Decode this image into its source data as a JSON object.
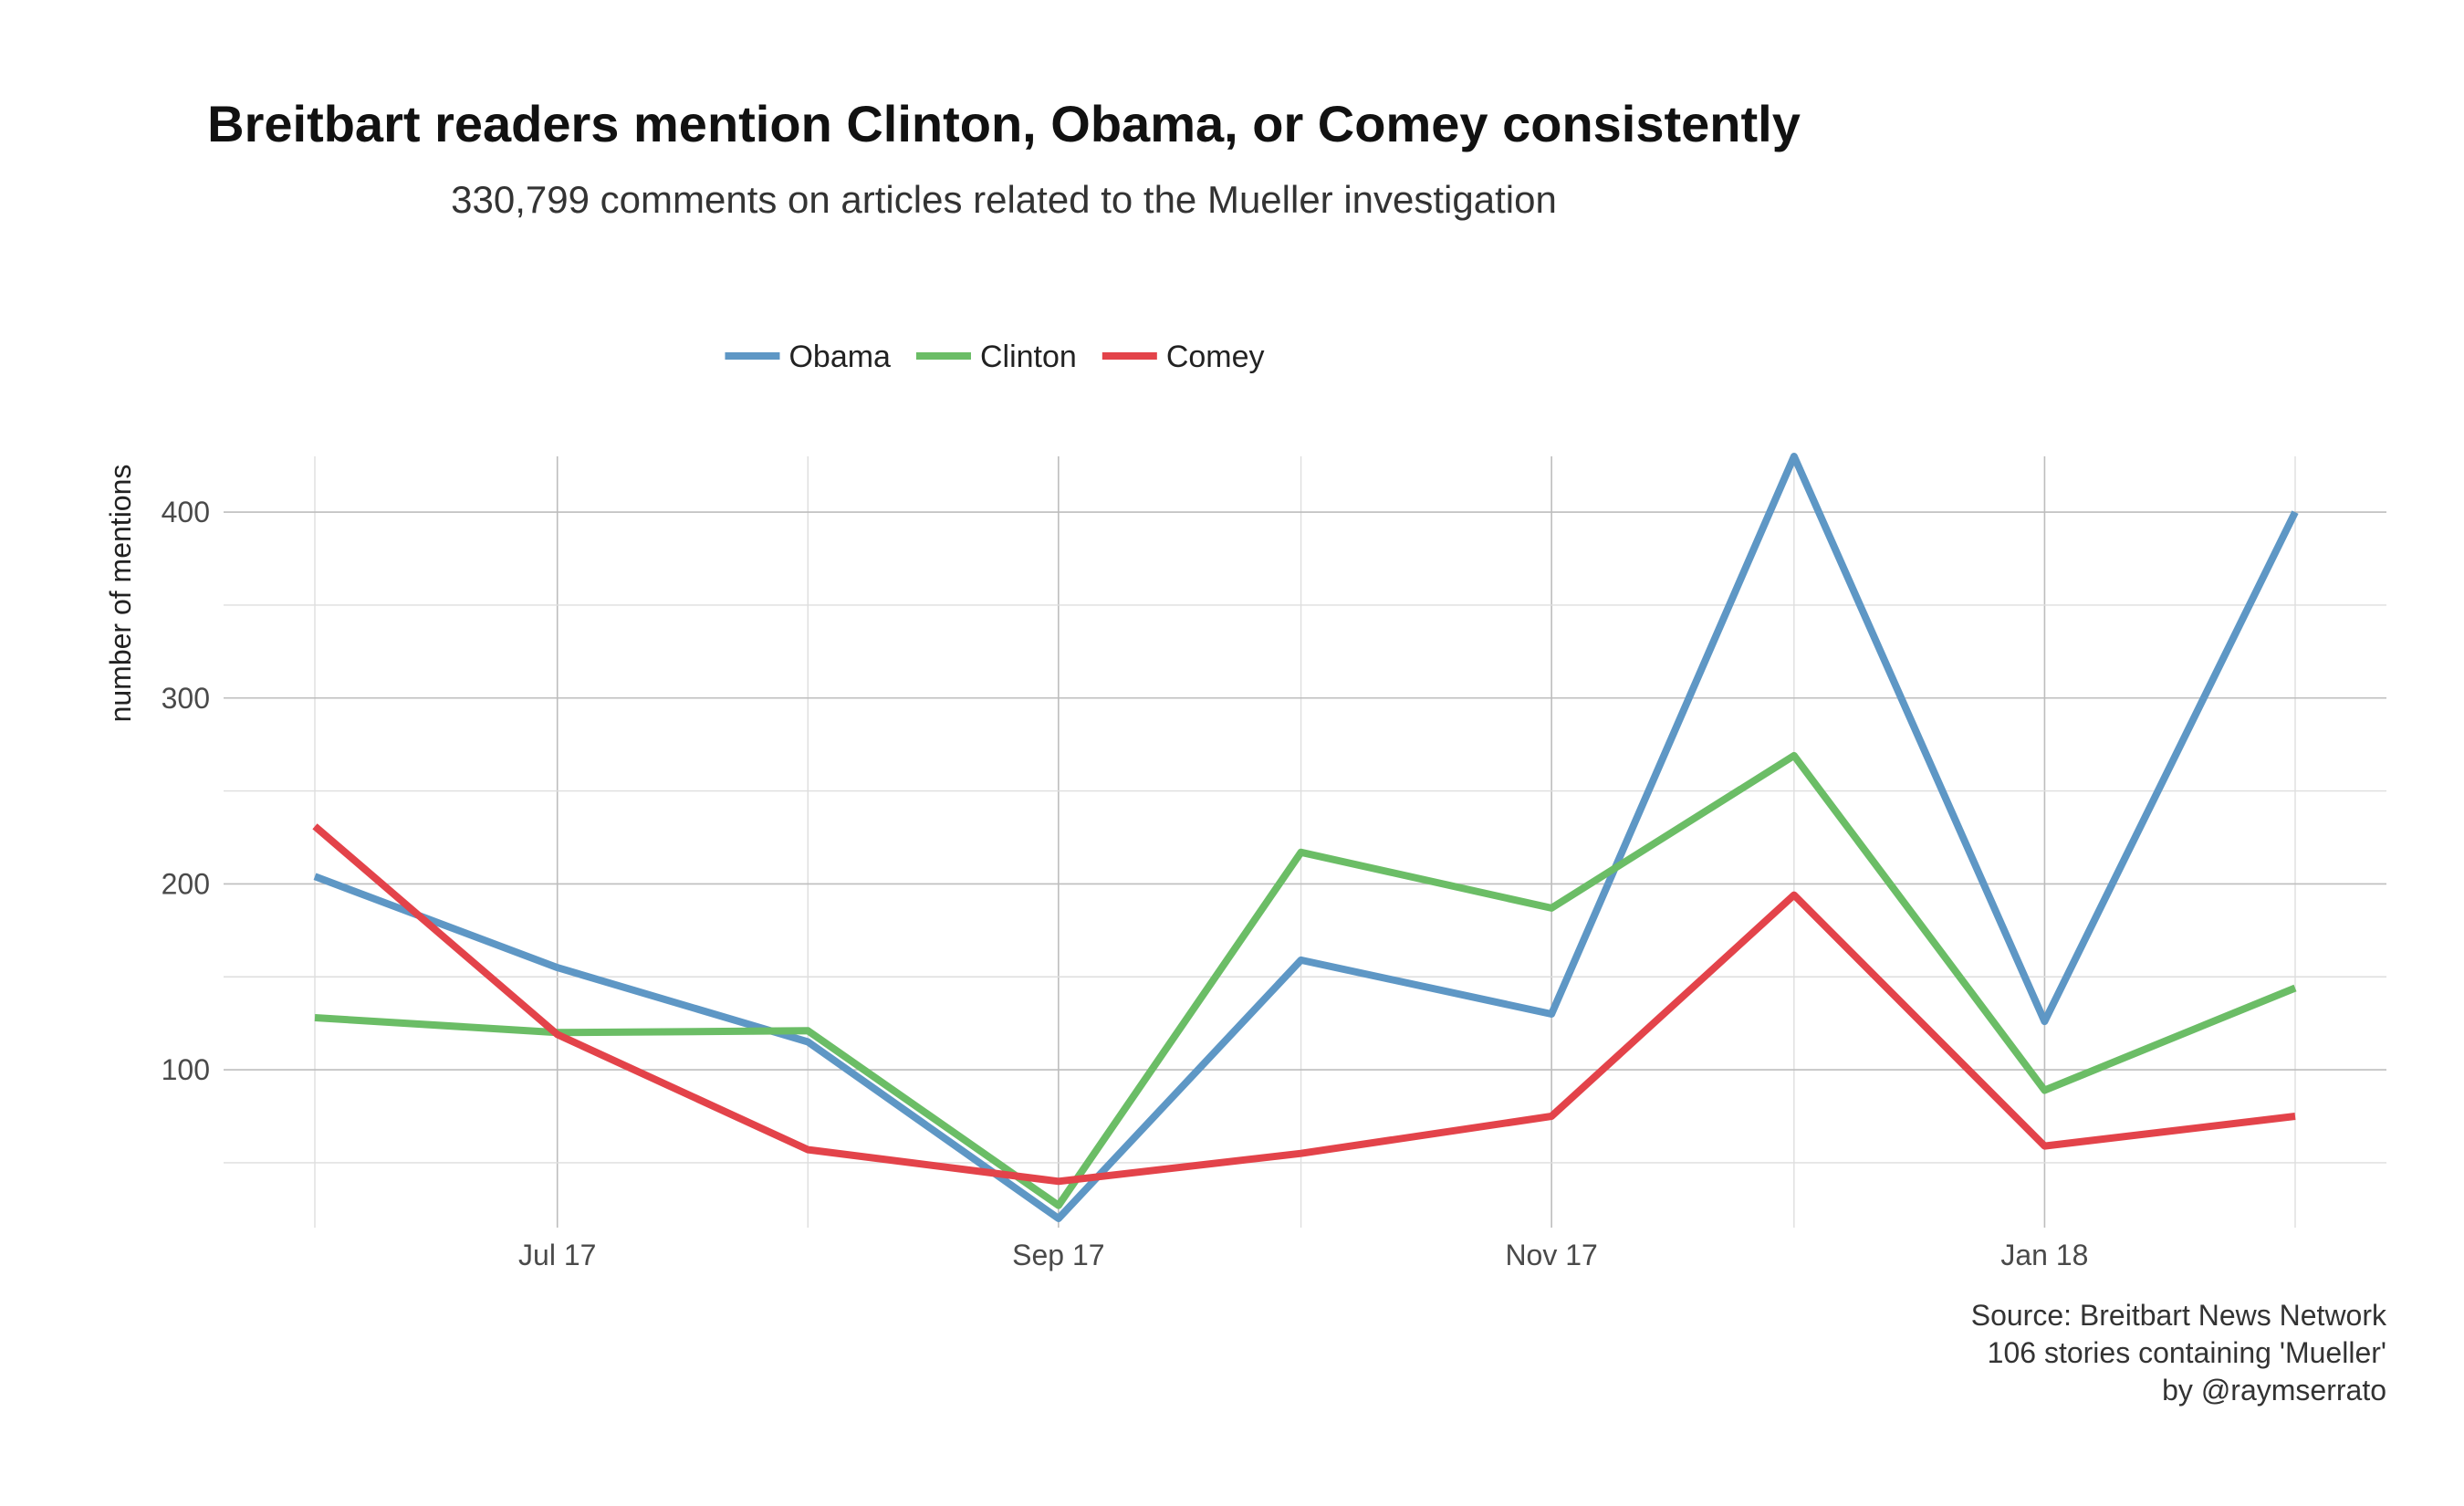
{
  "chart_data": {
    "type": "line",
    "title": "Breitbart readers mention Clinton, Obama, or Comey consistently",
    "subtitle": "330,799 comments on articles related to the Mueller investigation",
    "xlabel": "",
    "ylabel": "number of mentions",
    "x": [
      "2017-06-01",
      "2017-07-01",
      "2017-08-01",
      "2017-09-01",
      "2017-10-01",
      "2017-11-01",
      "2017-12-01",
      "2018-01-01",
      "2018-02-01"
    ],
    "x_ticks": [
      "2017-07-01",
      "2017-09-01",
      "2017-11-01",
      "2018-01-01"
    ],
    "x_tick_labels": [
      "Jul 17",
      "Sep 17",
      "Nov 17",
      "Jan 18"
    ],
    "xlim": [
      "2017-06-01",
      "2018-02-01"
    ],
    "y_ticks": [
      100,
      200,
      300,
      400
    ],
    "ylim": [
      20,
      430
    ],
    "grid": true,
    "legend_position": "top",
    "series": [
      {
        "name": "Obama",
        "color": "#5e97c5",
        "values": [
          204,
          155,
          115,
          20,
          159,
          130,
          430,
          126,
          400
        ]
      },
      {
        "name": "Clinton",
        "color": "#6bbd66",
        "values": [
          128,
          120,
          121,
          27,
          217,
          187,
          269,
          89,
          144
        ]
      },
      {
        "name": "Comey",
        "color": "#e3434a",
        "values": [
          231,
          119,
          57,
          40,
          55,
          75,
          194,
          59,
          75
        ]
      }
    ],
    "caption": [
      "Source: Breitbart News Network",
      "106 stories containing 'Mueller'",
      "by @raymserrato"
    ]
  }
}
